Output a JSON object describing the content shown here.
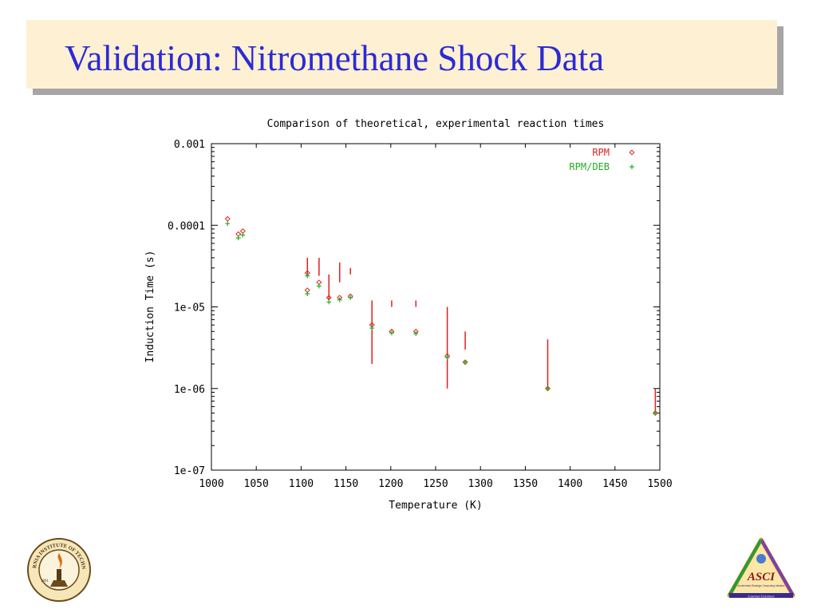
{
  "slide": {
    "title": "Validation: Nitromethane Shock Data"
  },
  "logos": {
    "left": {
      "icon": "caltech-seal-icon",
      "text": "CALIFORNIA INSTITUTE OF TECHNOLOGY",
      "year": "1891"
    },
    "right": {
      "icon": "asci-triangle-logo-icon",
      "text": "ASCI",
      "subtext": "Accelerated Strategic Computing Initiative",
      "lab": "Lawrence Livermore"
    }
  },
  "chart_data": {
    "type": "scatter",
    "title": "Comparison of theoretical, experimental reaction times",
    "xlabel": "Temperature (K)",
    "ylabel": "Induction Time (s)",
    "xlim": [
      1000,
      1500
    ],
    "ylim": [
      1e-07,
      0.001
    ],
    "y_scale": "log",
    "x_ticks": [
      1000,
      1050,
      1100,
      1150,
      1200,
      1250,
      1300,
      1350,
      1400,
      1450,
      1500
    ],
    "x_tick_labels": [
      "1000",
      "1050",
      "1100",
      "1150",
      "1200",
      "1250",
      "1300",
      "1350",
      "1400",
      "1450",
      "1500"
    ],
    "y_ticks": [
      1e-07,
      1e-06,
      1e-05,
      0.0001,
      0.001
    ],
    "y_tick_labels": [
      "1e-07",
      "1e-06",
      "1e-05",
      "0.0001",
      "0.001"
    ],
    "legend_position": "top-right",
    "grid": false,
    "series": [
      {
        "name": "RPM",
        "marker": "diamond",
        "color": "#e02020",
        "points": [
          [
            1018,
            0.00012
          ],
          [
            1030,
            7.8e-05
          ],
          [
            1035,
            8.5e-05
          ],
          [
            1107,
            2.6e-05
          ],
          [
            1107,
            1.6e-05
          ],
          [
            1120,
            2e-05
          ],
          [
            1131,
            1.3e-05
          ],
          [
            1143,
            1.3e-05
          ],
          [
            1155,
            1.35e-05
          ],
          [
            1179,
            6e-06
          ],
          [
            1201,
            5e-06
          ],
          [
            1228,
            5e-06
          ],
          [
            1263,
            2.5e-06
          ],
          [
            1283,
            2.1e-06
          ],
          [
            1375,
            1e-06
          ],
          [
            1495,
            5e-07
          ]
        ]
      },
      {
        "name": "RPM/DEB",
        "marker": "plus",
        "color": "#20b020",
        "points": [
          [
            1018,
            0.000105
          ],
          [
            1030,
            7e-05
          ],
          [
            1035,
            7.6e-05
          ],
          [
            1107,
            2.4e-05
          ],
          [
            1107,
            1.45e-05
          ],
          [
            1120,
            1.8e-05
          ],
          [
            1131,
            1.15e-05
          ],
          [
            1143,
            1.22e-05
          ],
          [
            1155,
            1.3e-05
          ],
          [
            1179,
            5.5e-06
          ],
          [
            1201,
            4.8e-06
          ],
          [
            1228,
            4.7e-06
          ],
          [
            1263,
            2.4e-06
          ],
          [
            1283,
            2.1e-06
          ],
          [
            1375,
            1e-06
          ],
          [
            1495,
            5e-07
          ]
        ]
      }
    ],
    "experimental_ranges": {
      "color": "#e02020",
      "segments": [
        [
          1107,
          2.5e-05,
          4e-05
        ],
        [
          1120,
          2.4e-05,
          4e-05
        ],
        [
          1131,
          1.25e-05,
          2.5e-05
        ],
        [
          1143,
          2e-05,
          3.5e-05
        ],
        [
          1155,
          2.5e-05,
          3e-05
        ],
        [
          1179,
          2e-06,
          1.2e-05
        ],
        [
          1201,
          1e-05,
          1.2e-05
        ],
        [
          1228,
          1e-05,
          1.2e-05
        ],
        [
          1263,
          1e-06,
          1e-05
        ],
        [
          1283,
          3e-06,
          5e-06
        ],
        [
          1375,
          1e-06,
          4e-06
        ],
        [
          1495,
          5e-07,
          1e-06
        ]
      ]
    }
  }
}
